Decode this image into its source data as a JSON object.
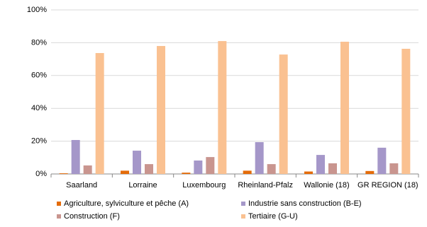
{
  "chart_data": {
    "type": "bar",
    "categories": [
      "Saarland",
      "Lorraine",
      "Luxembourg",
      "Rheinland-Pfalz",
      "Wallonie (18)",
      "GR REGION (18)"
    ],
    "series": [
      {
        "name": "Agriculture, sylviculture et pêche (A)",
        "color": "#e46c0a",
        "values": [
          0.4,
          2.0,
          0.8,
          2.0,
          1.5,
          1.8
        ]
      },
      {
        "name": "Industrie sans construction (B-E)",
        "color": "#a597c9",
        "values": [
          20.7,
          14.2,
          8.2,
          19.4,
          11.6,
          16.0
        ]
      },
      {
        "name": "Construction (F)",
        "color": "#c9958f",
        "values": [
          5.2,
          6.0,
          10.3,
          6.0,
          6.5,
          6.5
        ]
      },
      {
        "name": "Tertiaire (G-U)",
        "color": "#fac191",
        "values": [
          73.7,
          78.0,
          81.0,
          72.8,
          80.6,
          76.3
        ]
      }
    ],
    "ylim": [
      0,
      100
    ],
    "yticks": [
      {
        "value": 0,
        "label": "0%"
      },
      {
        "value": 20,
        "label": "20%"
      },
      {
        "value": 40,
        "label": "40%"
      },
      {
        "value": 60,
        "label": "60%"
      },
      {
        "value": 80,
        "label": "80%"
      },
      {
        "value": 100,
        "label": "100%"
      }
    ],
    "grid": true,
    "legend": "bottom"
  }
}
